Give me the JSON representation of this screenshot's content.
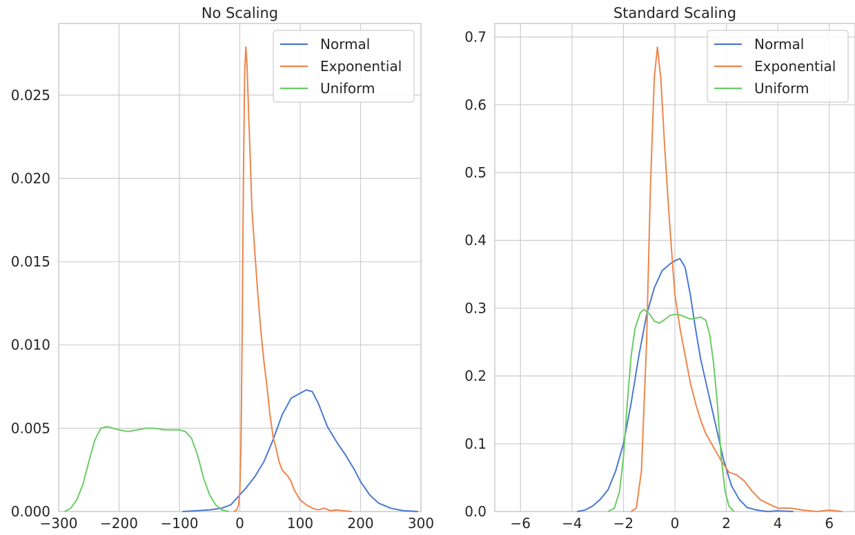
{
  "chart_data": [
    {
      "type": "line",
      "title": "No Scaling",
      "xlabel": "",
      "ylabel": "",
      "xlim": [
        -300,
        300
      ],
      "ylim": [
        0,
        0.0293
      ],
      "xticks": [
        -300,
        -200,
        -100,
        0,
        100,
        200,
        300
      ],
      "xtick_labels": [
        "−300",
        "−200",
        "−100",
        "0",
        "100",
        "200",
        "300"
      ],
      "yticks": [
        0,
        0.005,
        0.01,
        0.015,
        0.02,
        0.025
      ],
      "ytick_labels": [
        "0.000",
        "0.005",
        "0.010",
        "0.015",
        "0.020",
        "0.025"
      ],
      "grid": true,
      "legend_position": "top-right",
      "series": [
        {
          "name": "Normal",
          "color": "#4878d0",
          "points": [
            [
              -95,
              0.0
            ],
            [
              -70,
              5e-05
            ],
            [
              -50,
              0.0001
            ],
            [
              -30,
              0.0002
            ],
            [
              -15,
              0.0004
            ],
            [
              0,
              0.001
            ],
            [
              10,
              0.0014
            ],
            [
              25,
              0.0021
            ],
            [
              40,
              0.003
            ],
            [
              55,
              0.0043
            ],
            [
              70,
              0.0058
            ],
            [
              85,
              0.0068
            ],
            [
              100,
              0.0071
            ],
            [
              110,
              0.0073
            ],
            [
              120,
              0.0072
            ],
            [
              130,
              0.0065
            ],
            [
              145,
              0.0051
            ],
            [
              160,
              0.0042
            ],
            [
              175,
              0.0034
            ],
            [
              190,
              0.0025
            ],
            [
              200,
              0.0018
            ],
            [
              215,
              0.001
            ],
            [
              230,
              0.0005
            ],
            [
              250,
              0.0002
            ],
            [
              270,
              5e-05
            ],
            [
              295,
              0.0
            ]
          ]
        },
        {
          "name": "Exponential",
          "color": "#ee854a",
          "points": [
            [
              -10,
              0.0
            ],
            [
              -5,
              0.0001
            ],
            [
              -2,
              0.0004
            ],
            [
              0,
              0.0012
            ],
            [
              2,
              0.004
            ],
            [
              4,
              0.011
            ],
            [
              6,
              0.02
            ],
            [
              8,
              0.0262
            ],
            [
              10,
              0.0279
            ],
            [
              12,
              0.0268
            ],
            [
              15,
              0.0235
            ],
            [
              18,
              0.0205
            ],
            [
              20,
              0.0182
            ],
            [
              25,
              0.0155
            ],
            [
              30,
              0.013
            ],
            [
              35,
              0.0108
            ],
            [
              40,
              0.009
            ],
            [
              45,
              0.0075
            ],
            [
              50,
              0.0058
            ],
            [
              55,
              0.0045
            ],
            [
              60,
              0.0038
            ],
            [
              65,
              0.003
            ],
            [
              70,
              0.0025
            ],
            [
              80,
              0.0021
            ],
            [
              85,
              0.0018
            ],
            [
              90,
              0.0013
            ],
            [
              95,
              0.001
            ],
            [
              100,
              0.0007
            ],
            [
              110,
              0.0004
            ],
            [
              120,
              0.0002
            ],
            [
              130,
              0.0001
            ],
            [
              140,
              0.0002
            ],
            [
              150,
              5e-05
            ],
            [
              160,
              0.0001
            ],
            [
              170,
              5e-05
            ],
            [
              185,
              0.0
            ]
          ]
        },
        {
          "name": "Uniform",
          "color": "#6acc64",
          "points": [
            [
              -290,
              0.0
            ],
            [
              -280,
              0.0002
            ],
            [
              -270,
              0.0007
            ],
            [
              -260,
              0.0016
            ],
            [
              -250,
              0.003
            ],
            [
              -240,
              0.0043
            ],
            [
              -230,
              0.005
            ],
            [
              -220,
              0.0051
            ],
            [
              -210,
              0.005
            ],
            [
              -200,
              0.0049
            ],
            [
              -185,
              0.0048
            ],
            [
              -170,
              0.0049
            ],
            [
              -155,
              0.005
            ],
            [
              -140,
              0.005
            ],
            [
              -125,
              0.0049
            ],
            [
              -110,
              0.0049
            ],
            [
              -100,
              0.0049
            ],
            [
              -90,
              0.0048
            ],
            [
              -80,
              0.0044
            ],
            [
              -70,
              0.0034
            ],
            [
              -60,
              0.002
            ],
            [
              -50,
              0.001
            ],
            [
              -40,
              0.0004
            ],
            [
              -30,
              0.0001
            ],
            [
              -18,
              0.0
            ]
          ]
        }
      ]
    },
    {
      "type": "line",
      "title": "Standard Scaling",
      "xlabel": "",
      "ylabel": "",
      "xlim": [
        -7,
        7
      ],
      "ylim": [
        0,
        0.72
      ],
      "xticks": [
        -6,
        -4,
        -2,
        0,
        2,
        4,
        6
      ],
      "xtick_labels": [
        "−6",
        "−4",
        "−2",
        "0",
        "2",
        "4",
        "6"
      ],
      "yticks": [
        0,
        0.1,
        0.2,
        0.3,
        0.4,
        0.5,
        0.6,
        0.7
      ],
      "ytick_labels": [
        "0.0",
        "0.1",
        "0.2",
        "0.3",
        "0.4",
        "0.5",
        "0.6",
        "0.7"
      ],
      "grid": true,
      "legend_position": "top-right",
      "series": [
        {
          "name": "Normal",
          "color": "#4878d0",
          "points": [
            [
              -3.8,
              0.0
            ],
            [
              -3.5,
              0.002
            ],
            [
              -3.2,
              0.008
            ],
            [
              -2.9,
              0.018
            ],
            [
              -2.6,
              0.032
            ],
            [
              -2.3,
              0.06
            ],
            [
              -2.0,
              0.1
            ],
            [
              -1.7,
              0.16
            ],
            [
              -1.4,
              0.23
            ],
            [
              -1.1,
              0.29
            ],
            [
              -0.8,
              0.33
            ],
            [
              -0.5,
              0.355
            ],
            [
              -0.2,
              0.365
            ],
            [
              0.0,
              0.37
            ],
            [
              0.2,
              0.373
            ],
            [
              0.4,
              0.36
            ],
            [
              0.6,
              0.32
            ],
            [
              0.8,
              0.27
            ],
            [
              1.0,
              0.225
            ],
            [
              1.3,
              0.175
            ],
            [
              1.6,
              0.125
            ],
            [
              1.9,
              0.075
            ],
            [
              2.2,
              0.038
            ],
            [
              2.5,
              0.018
            ],
            [
              2.8,
              0.006
            ],
            [
              3.2,
              0.002
            ],
            [
              3.6,
              0.0
            ],
            [
              4.0,
              0.001
            ],
            [
              4.6,
              0.0
            ]
          ]
        },
        {
          "name": "Exponential",
          "color": "#ee854a",
          "points": [
            [
              -1.7,
              0.0
            ],
            [
              -1.5,
              0.005
            ],
            [
              -1.3,
              0.06
            ],
            [
              -1.1,
              0.25
            ],
            [
              -0.95,
              0.48
            ],
            [
              -0.8,
              0.64
            ],
            [
              -0.68,
              0.685
            ],
            [
              -0.55,
              0.64
            ],
            [
              -0.4,
              0.54
            ],
            [
              -0.25,
              0.45
            ],
            [
              -0.1,
              0.37
            ],
            [
              0.0,
              0.32
            ],
            [
              0.2,
              0.27
            ],
            [
              0.4,
              0.23
            ],
            [
              0.6,
              0.19
            ],
            [
              0.8,
              0.16
            ],
            [
              1.0,
              0.135
            ],
            [
              1.2,
              0.115
            ],
            [
              1.5,
              0.095
            ],
            [
              1.8,
              0.075
            ],
            [
              2.1,
              0.058
            ],
            [
              2.4,
              0.054
            ],
            [
              2.7,
              0.045
            ],
            [
              3.0,
              0.03
            ],
            [
              3.3,
              0.018
            ],
            [
              3.6,
              0.012
            ],
            [
              4.0,
              0.005
            ],
            [
              4.5,
              0.005
            ],
            [
              5.0,
              0.002
            ],
            [
              5.5,
              0.0
            ],
            [
              6.0,
              0.002
            ],
            [
              6.5,
              0.0
            ]
          ]
        },
        {
          "name": "Uniform",
          "color": "#6acc64",
          "points": [
            [
              -2.6,
              0.0
            ],
            [
              -2.35,
              0.005
            ],
            [
              -2.15,
              0.03
            ],
            [
              -2.0,
              0.08
            ],
            [
              -1.85,
              0.16
            ],
            [
              -1.7,
              0.23
            ],
            [
              -1.55,
              0.27
            ],
            [
              -1.35,
              0.293
            ],
            [
              -1.2,
              0.298
            ],
            [
              -1.0,
              0.292
            ],
            [
              -0.8,
              0.281
            ],
            [
              -0.6,
              0.278
            ],
            [
              -0.4,
              0.283
            ],
            [
              -0.2,
              0.289
            ],
            [
              0.0,
              0.291
            ],
            [
              0.2,
              0.29
            ],
            [
              0.4,
              0.287
            ],
            [
              0.6,
              0.284
            ],
            [
              0.8,
              0.285
            ],
            [
              1.0,
              0.287
            ],
            [
              1.2,
              0.282
            ],
            [
              1.35,
              0.262
            ],
            [
              1.5,
              0.22
            ],
            [
              1.65,
              0.16
            ],
            [
              1.8,
              0.08
            ],
            [
              1.95,
              0.03
            ],
            [
              2.1,
              0.008
            ],
            [
              2.3,
              0.0
            ]
          ]
        }
      ]
    }
  ]
}
